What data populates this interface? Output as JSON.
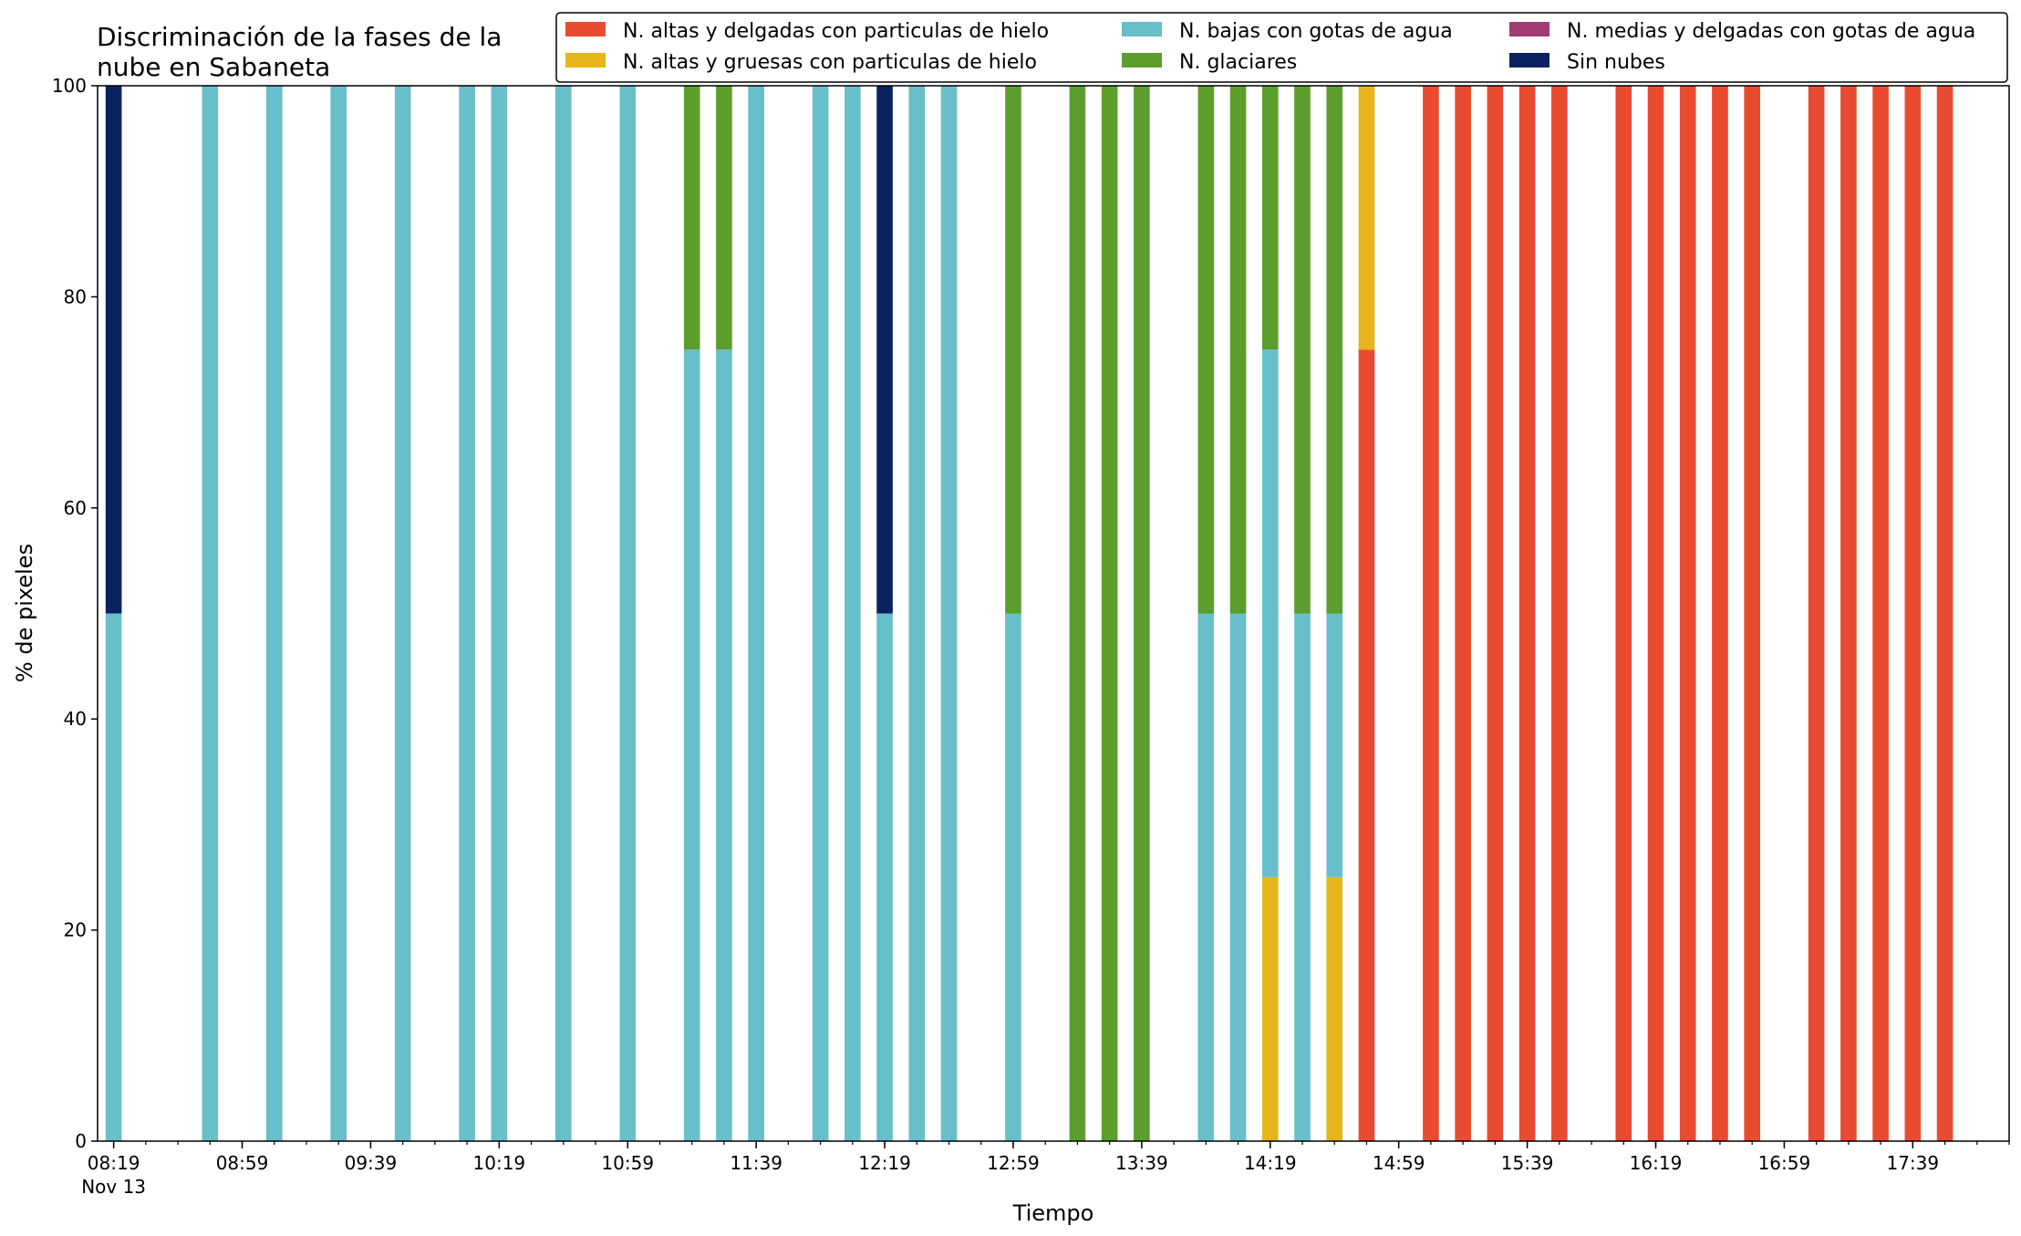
{
  "chart_data": {
    "type": "bar",
    "stacked": true,
    "title": "Discriminación de la fases de la nube en Sabaneta",
    "title_lines": [
      "Discriminación de la fases de la",
      "nube en Sabaneta"
    ],
    "xlabel": "Tiempo",
    "ylabel": "% de pixeles",
    "ylim": [
      0,
      100
    ],
    "yticks": [
      0,
      20,
      40,
      60,
      80,
      100
    ],
    "xlim": [
      "08:14",
      "18:09"
    ],
    "xticks_major": [
      "08:19",
      "08:59",
      "09:39",
      "10:19",
      "10:59",
      "11:39",
      "12:19",
      "12:59",
      "13:39",
      "14:19",
      "14:59",
      "15:39",
      "16:19",
      "16:59",
      "17:39"
    ],
    "xtick_major_labels": [
      "08:19",
      "08:59",
      "09:39",
      "10:19",
      "10:59",
      "11:39",
      "12:19",
      "12:59",
      "13:39",
      "14:19",
      "14:59",
      "15:39",
      "16:19",
      "16:59",
      "17:39"
    ],
    "x_date_label": "Nov 13",
    "xticks_minor_every_minutes": 10,
    "bar_width_minutes": 5,
    "grid": false,
    "legend_position": "top-right",
    "legend_columns": 3,
    "series": [
      {
        "name": "N. altas y delgadas con particulas de hielo",
        "color": "#e94b30"
      },
      {
        "name": "N. altas y gruesas con particulas de hielo",
        "color": "#e5b51a"
      },
      {
        "name": "N. bajas con gotas de agua",
        "color": "#67bfc9"
      },
      {
        "name": "N. glaciares",
        "color": "#5b9e2c"
      },
      {
        "name": "N. medias y delgadas con gotas de agua",
        "color": "#a33b75"
      },
      {
        "name": "Sin nubes",
        "color": "#0b2260"
      }
    ],
    "x": [
      "08:19",
      "08:49",
      "09:09",
      "09:29",
      "09:49",
      "10:09",
      "10:19",
      "10:39",
      "10:59",
      "11:19",
      "11:29",
      "11:39",
      "11:59",
      "12:09",
      "12:19",
      "12:29",
      "12:39",
      "12:59",
      "13:19",
      "13:29",
      "13:39",
      "13:59",
      "14:09",
      "14:19",
      "14:29",
      "14:39",
      "14:49",
      "15:09",
      "15:19",
      "15:29",
      "15:39",
      "15:49",
      "16:09",
      "16:19",
      "16:29",
      "16:39",
      "16:49",
      "17:09",
      "17:19",
      "17:29",
      "17:39",
      "17:49"
    ],
    "values": [
      [
        0,
        0,
        50,
        0,
        0,
        50
      ],
      [
        0,
        0,
        100,
        0,
        0,
        0
      ],
      [
        0,
        0,
        100,
        0,
        0,
        0
      ],
      [
        0,
        0,
        100,
        0,
        0,
        0
      ],
      [
        0,
        0,
        100,
        0,
        0,
        0
      ],
      [
        0,
        0,
        100,
        0,
        0,
        0
      ],
      [
        0,
        0,
        100,
        0,
        0,
        0
      ],
      [
        0,
        0,
        100,
        0,
        0,
        0
      ],
      [
        0,
        0,
        100,
        0,
        0,
        0
      ],
      [
        0,
        0,
        75,
        25,
        0,
        0
      ],
      [
        0,
        0,
        75,
        25,
        0,
        0
      ],
      [
        0,
        0,
        100,
        0,
        0,
        0
      ],
      [
        0,
        0,
        100,
        0,
        0,
        0
      ],
      [
        0,
        0,
        100,
        0,
        0,
        0
      ],
      [
        0,
        0,
        50,
        0,
        0,
        50
      ],
      [
        0,
        0,
        100,
        0,
        0,
        0
      ],
      [
        0,
        0,
        100,
        0,
        0,
        0
      ],
      [
        0,
        0,
        50,
        50,
        0,
        0
      ],
      [
        0,
        0,
        0,
        100,
        0,
        0
      ],
      [
        0,
        0,
        0,
        100,
        0,
        0
      ],
      [
        0,
        0,
        0,
        100,
        0,
        0
      ],
      [
        0,
        0,
        50,
        50,
        0,
        0
      ],
      [
        0,
        0,
        50,
        50,
        0,
        0
      ],
      [
        0,
        25,
        50,
        25,
        0,
        0
      ],
      [
        0,
        0,
        50,
        50,
        0,
        0
      ],
      [
        0,
        25,
        25,
        50,
        0,
        0
      ],
      [
        75,
        25,
        0,
        0,
        0,
        0
      ],
      [
        100,
        0,
        0,
        0,
        0,
        0
      ],
      [
        100,
        0,
        0,
        0,
        0,
        0
      ],
      [
        100,
        0,
        0,
        0,
        0,
        0
      ],
      [
        100,
        0,
        0,
        0,
        0,
        0
      ],
      [
        100,
        0,
        0,
        0,
        0,
        0
      ],
      [
        100,
        0,
        0,
        0,
        0,
        0
      ],
      [
        100,
        0,
        0,
        0,
        0,
        0
      ],
      [
        100,
        0,
        0,
        0,
        0,
        0
      ],
      [
        100,
        0,
        0,
        0,
        0,
        0
      ],
      [
        100,
        0,
        0,
        0,
        0,
        0
      ],
      [
        100,
        0,
        0,
        0,
        0,
        0
      ],
      [
        100,
        0,
        0,
        0,
        0,
        0
      ],
      [
        100,
        0,
        0,
        0,
        0,
        0
      ],
      [
        100,
        0,
        0,
        0,
        0,
        0
      ],
      [
        100,
        0,
        0,
        0,
        0,
        0
      ]
    ]
  }
}
